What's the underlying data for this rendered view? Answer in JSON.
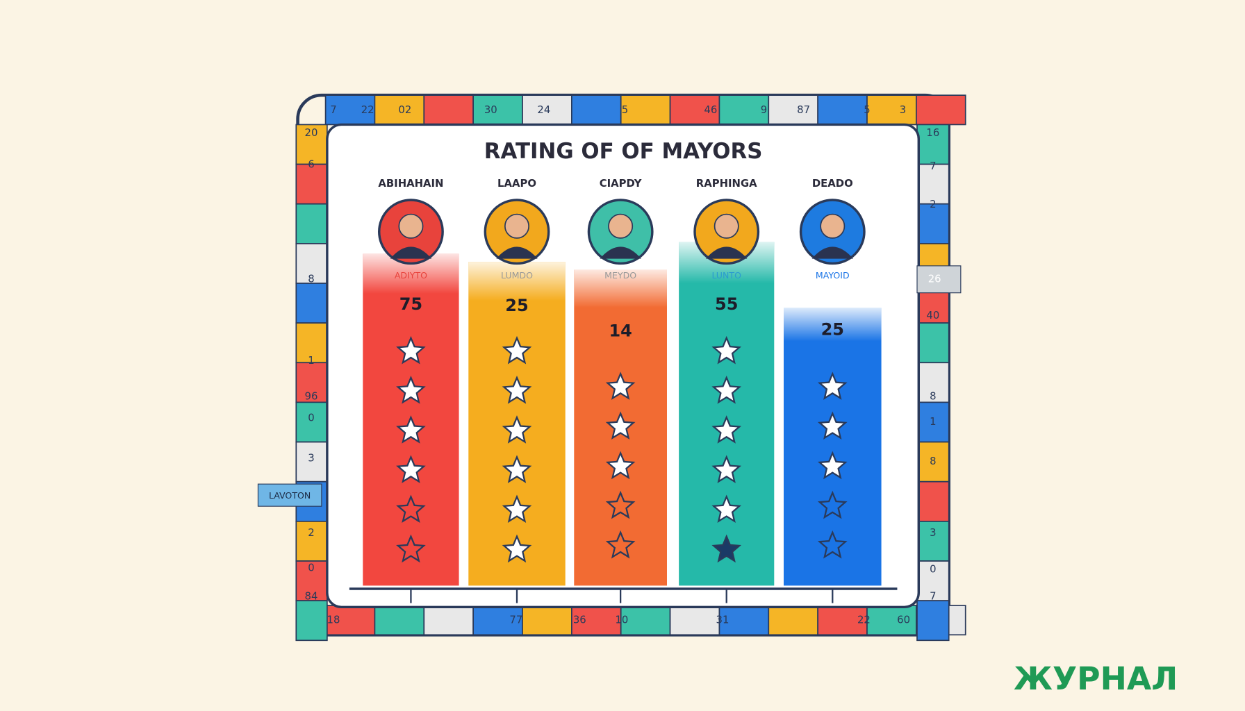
{
  "title": "RATING OF OF MAYORS",
  "columns": [
    {
      "name": "ABIHAHAIN",
      "sublabel": "ADIYTO",
      "value": "75"
    },
    {
      "name": "LAAPO",
      "sublabel": "LUMDO",
      "value": "25"
    },
    {
      "name": "CIAPDY",
      "sublabel": "MEYDO",
      "value": "14"
    },
    {
      "name": "RAPHINGA",
      "sublabel": "LUNTO",
      "value": "55"
    },
    {
      "name": "DEADO",
      "sublabel": "MAYOID",
      "value": "25"
    }
  ],
  "board": {
    "top": [
      "7",
      "22",
      "02",
      "30",
      "24",
      "5",
      "46",
      "9",
      "87",
      "5",
      "3"
    ],
    "left": [
      "20",
      "6",
      "8",
      "1",
      "96",
      "0",
      "3",
      "2",
      "0",
      "84"
    ],
    "right": [
      "16",
      "7",
      "2",
      "40",
      "8",
      "1",
      "8",
      "3",
      "0",
      "7"
    ],
    "bottom": [
      "18",
      "77",
      "36",
      "10",
      "31",
      "22",
      "60"
    ],
    "left_tag": "LAVOTON",
    "right_tag": "26"
  },
  "brand": "ЖУРНАЛ"
}
